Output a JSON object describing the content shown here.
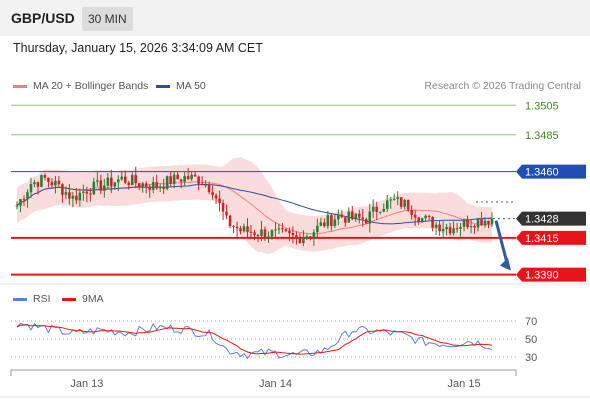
{
  "header": {
    "symbol": "GBP/USD",
    "timeframe": "30 MIN",
    "datetime": "Thursday, January 15, 2026 3:34:09 AM CET"
  },
  "legend": {
    "ma20": {
      "label": "MA 20 + Bollinger Bands",
      "color": "#f08080"
    },
    "ma50": {
      "label": "MA 50",
      "color": "#2b4f9e"
    },
    "credit": "Research © 2026 Trading Central"
  },
  "price_levels": [
    {
      "value": 1.3505,
      "label": "1.3505",
      "kind": "resistance-thin"
    },
    {
      "value": 1.3485,
      "label": "1.3485",
      "kind": "resistance-thin"
    },
    {
      "value": 1.346,
      "label": "1.3460",
      "kind": "pivot"
    },
    {
      "value": 1.3428,
      "label": "1.3428",
      "kind": "last"
    },
    {
      "value": 1.3415,
      "label": "1.3415",
      "kind": "support"
    },
    {
      "value": 1.339,
      "label": "1.3390",
      "kind": "support"
    }
  ],
  "colors": {
    "thin_level": "#8cc87a",
    "thin_label": "#3d8c1e",
    "pivot": "#1f4fb5",
    "support": "#e8141b",
    "last": "#333333",
    "candle_up": "#2e7d32",
    "candle_down": "#c62828",
    "band_fill": "#f9d6d6",
    "arrow": "#2e5d99",
    "rsi": "#5b7fd6",
    "rsi_ma": "#e8141b"
  },
  "rsi_legend": {
    "rsi": {
      "label": "RSI",
      "color": "#5b7fd6"
    },
    "ma": {
      "label": "9MA",
      "color": "#e8141b"
    }
  },
  "chart_data": {
    "type": "candlestick",
    "y_range": [
      1.3385,
      1.3512
    ],
    "x_labels": [
      "Jan 13",
      "Jan 14",
      "Jan 15"
    ],
    "x_label_index": [
      20,
      74,
      128
    ],
    "candle_count": 137,
    "anchor_closes": [
      [
        0,
        1.3437
      ],
      [
        4,
        1.3452
      ],
      [
        8,
        1.3455
      ],
      [
        12,
        1.345
      ],
      [
        16,
        1.3442
      ],
      [
        20,
        1.3448
      ],
      [
        25,
        1.3451
      ],
      [
        30,
        1.3455
      ],
      [
        35,
        1.3452
      ],
      [
        40,
        1.345
      ],
      [
        44,
        1.3454
      ],
      [
        48,
        1.3456
      ],
      [
        52,
        1.3455
      ],
      [
        56,
        1.3448
      ],
      [
        60,
        1.3426
      ],
      [
        64,
        1.342
      ],
      [
        68,
        1.3419
      ],
      [
        72,
        1.3418
      ],
      [
        76,
        1.3417
      ],
      [
        80,
        1.3415
      ],
      [
        84,
        1.3418
      ],
      [
        88,
        1.3425
      ],
      [
        92,
        1.343
      ],
      [
        96,
        1.3428
      ],
      [
        100,
        1.3428
      ],
      [
        104,
        1.3437
      ],
      [
        108,
        1.344
      ],
      [
        112,
        1.3437
      ],
      [
        116,
        1.3428
      ],
      [
        120,
        1.3424
      ],
      [
        124,
        1.3422
      ],
      [
        128,
        1.3425
      ],
      [
        132,
        1.3427
      ],
      [
        136,
        1.3428
      ]
    ],
    "forecast_arrow": {
      "from_index": 136,
      "from": 1.3428,
      "to": 1.339
    },
    "rsi": {
      "y_range": [
        20,
        80
      ],
      "ticks": [
        70,
        50,
        30
      ],
      "anchors": [
        [
          0,
          68
        ],
        [
          8,
          62
        ],
        [
          16,
          56
        ],
        [
          24,
          60
        ],
        [
          32,
          57
        ],
        [
          40,
          63
        ],
        [
          48,
          61
        ],
        [
          56,
          54
        ],
        [
          60,
          38
        ],
        [
          66,
          33
        ],
        [
          72,
          35
        ],
        [
          80,
          32
        ],
        [
          88,
          37
        ],
        [
          96,
          60
        ],
        [
          104,
          58
        ],
        [
          110,
          55
        ],
        [
          116,
          47
        ],
        [
          124,
          44
        ],
        [
          130,
          48
        ],
        [
          136,
          42
        ]
      ]
    }
  }
}
